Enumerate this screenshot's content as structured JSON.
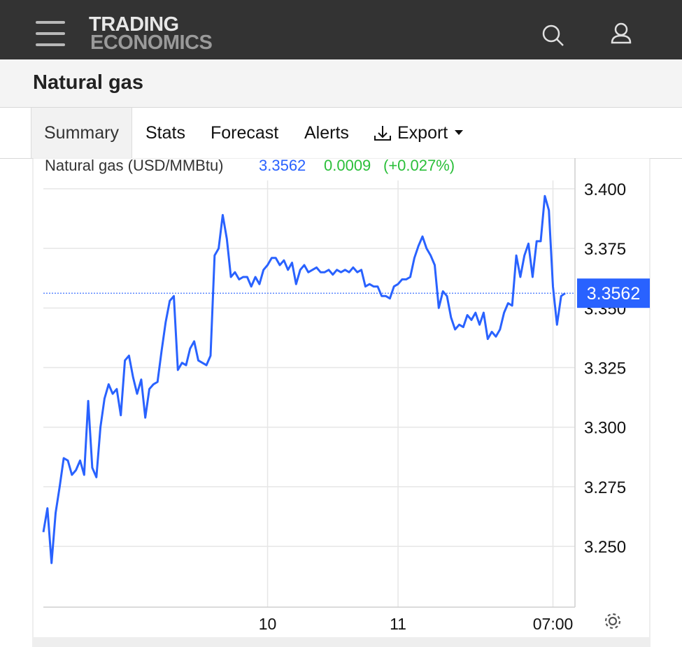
{
  "header": {
    "logo_top": "TRADING",
    "logo_bottom": "ECONOMICS"
  },
  "page_title": "Natural gas",
  "tabs": [
    "Summary",
    "Stats",
    "Forecast",
    "Alerts"
  ],
  "export": "Export",
  "chart_data": {
    "type": "line",
    "series": [
      {
        "name": "Natural gas (USD/MMBtu)",
        "color": "#2962ff",
        "values": [
          3.256,
          3.266,
          3.243,
          3.264,
          3.275,
          3.287,
          3.286,
          3.28,
          3.282,
          3.286,
          3.28,
          3.311,
          3.283,
          3.279,
          3.3,
          3.312,
          3.318,
          3.314,
          3.316,
          3.305,
          3.328,
          3.33,
          3.321,
          3.314,
          3.32,
          3.304,
          3.316,
          3.318,
          3.319,
          3.332,
          3.344,
          3.353,
          3.355,
          3.324,
          3.327,
          3.326,
          3.333,
          3.336,
          3.328,
          3.327,
          3.326,
          3.33,
          3.372,
          3.375,
          3.389,
          3.379,
          3.363,
          3.365,
          3.362,
          3.363,
          3.363,
          3.359,
          3.363,
          3.36,
          3.366,
          3.368,
          3.371,
          3.371,
          3.368,
          3.37,
          3.366,
          3.369,
          3.36,
          3.366,
          3.368,
          3.365,
          3.366,
          3.367,
          3.365,
          3.365,
          3.366,
          3.364,
          3.366,
          3.365,
          3.366,
          3.365,
          3.367,
          3.365,
          3.366,
          3.359,
          3.36,
          3.359,
          3.359,
          3.355,
          3.355,
          3.354,
          3.359,
          3.36,
          3.362,
          3.362,
          3.363,
          3.371,
          3.376,
          3.38,
          3.375,
          3.372,
          3.368,
          3.35,
          3.357,
          3.355,
          3.346,
          3.341,
          3.343,
          3.342,
          3.347,
          3.345,
          3.348,
          3.343,
          3.348,
          3.337,
          3.34,
          3.338,
          3.341,
          3.348,
          3.352,
          3.351,
          3.372,
          3.363,
          3.372,
          3.377,
          3.363,
          3.378,
          3.378,
          3.397,
          3.391,
          3.359,
          3.343,
          3.355,
          3.3562
        ]
      }
    ],
    "last_price": 3.3562,
    "change": 0.0009,
    "change_pct": "(+0.027%)",
    "xlim": [
      0,
      128
    ],
    "xticks": [
      {
        "value": 55,
        "label": "10"
      },
      {
        "value": 87,
        "label": "11"
      },
      {
        "value": 125,
        "label": "07:00"
      }
    ],
    "ylim": [
      3.2245,
      3.4035
    ],
    "yticks": [
      {
        "value": 3.25,
        "label": "3.250"
      },
      {
        "value": 3.275,
        "label": "3.275"
      },
      {
        "value": 3.3,
        "label": "3.300"
      },
      {
        "value": 3.325,
        "label": "3.325"
      },
      {
        "value": 3.35,
        "label": "3.350"
      },
      {
        "value": 3.375,
        "label": "3.375"
      },
      {
        "value": 3.4,
        "label": "3.400"
      }
    ],
    "grid": true
  }
}
